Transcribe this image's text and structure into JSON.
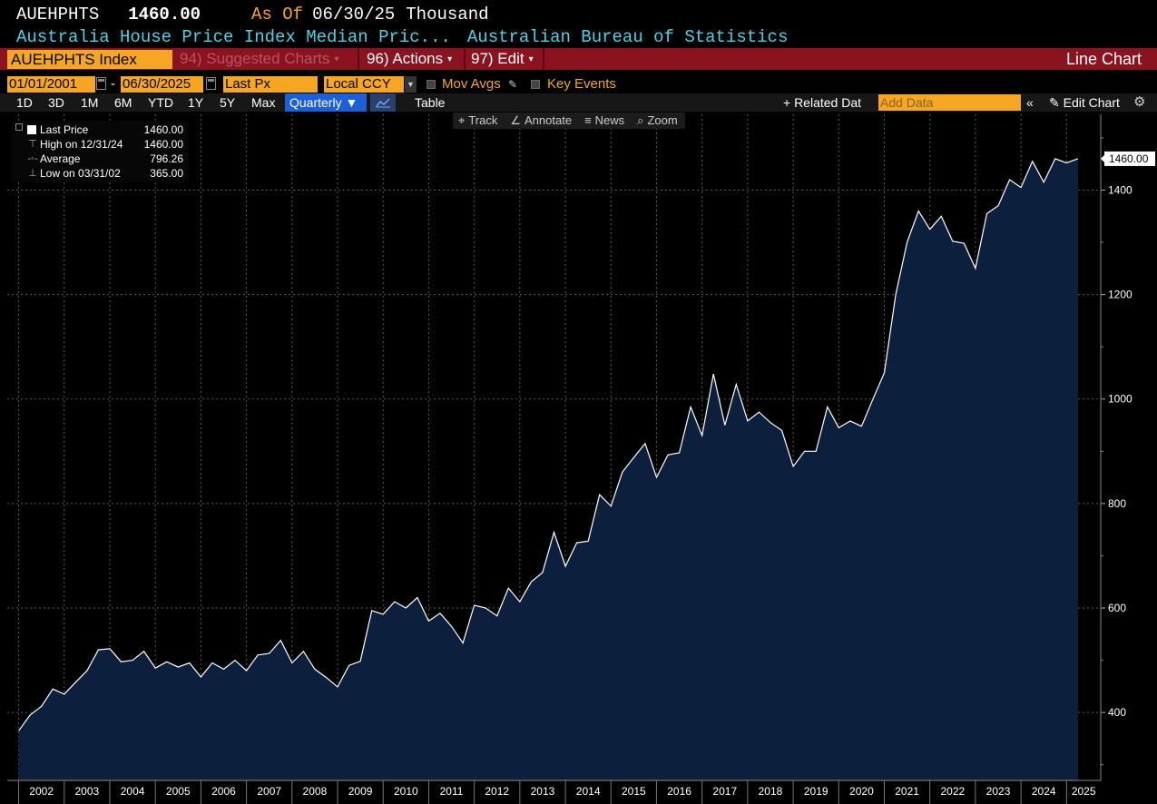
{
  "header": {
    "ticker": "AUEHPHTS",
    "price": "1460.00",
    "as_of_label": "As Of",
    "as_of_date": "06/30/25",
    "units": "Thousand",
    "description": "Australia House Price Index Median Pric...",
    "source": "Australian Bureau of Statistics"
  },
  "menu": {
    "index_name": "AUEHPHTS Index",
    "suggested": "94) Suggested Charts",
    "actions": "96) Actions",
    "edit": "97) Edit",
    "chart_type": "Line Chart"
  },
  "controls": {
    "start_date": "01/01/2001",
    "end_date": "06/30/2025",
    "field": "Last Px",
    "currency": "Local CCY",
    "mov_avgs": "Mov Avgs",
    "key_events": "Key Events",
    "periods": [
      "1D",
      "3D",
      "1M",
      "6M",
      "YTD",
      "1Y",
      "5Y",
      "Max"
    ],
    "frequency": "Quarterly",
    "table": "Table",
    "related": "+ Related Dat",
    "add_data_placeholder": "Add Data",
    "edit_chart": "Edit Chart"
  },
  "tools": [
    "Track",
    "Annotate",
    "News",
    "Zoom"
  ],
  "legend": {
    "rows": [
      {
        "label": "Last Price",
        "value": "1460.00"
      },
      {
        "label": "High on 12/31/24",
        "value": "1460.00"
      },
      {
        "label": "Average",
        "value": "796.26"
      },
      {
        "label": "Low on 03/31/02",
        "value": "365.00"
      }
    ]
  },
  "colors": {
    "accent": "#f5a623",
    "menu_bar": "#8b1320",
    "area_fill": "#0c1f3d",
    "line": "#ffffff",
    "title_cyan": "#4fd0e8"
  },
  "chart_data": {
    "type": "area",
    "title": "",
    "xlabel": "",
    "ylabel": "",
    "ylim": [
      270,
      1545
    ],
    "yticks": [
      400,
      600,
      800,
      1000,
      1200,
      1400
    ],
    "xlim": [
      2001.75,
      2025.75
    ],
    "year_labels": [
      "2002",
      "2003",
      "2004",
      "2005",
      "2006",
      "2007",
      "2008",
      "2009",
      "2010",
      "2011",
      "2012",
      "2013",
      "2014",
      "2015",
      "2016",
      "2017",
      "2018",
      "2019",
      "2020",
      "2021",
      "2022",
      "2023",
      "2024",
      "2025"
    ],
    "grid": true,
    "legend_position": "top-left",
    "last_value_tag": "1460.00",
    "series": [
      {
        "x": [
          2002.0,
          2002.25,
          2002.5,
          2002.75,
          2003.0,
          2003.25,
          2003.5,
          2003.75,
          2004.0,
          2004.25,
          2004.5,
          2004.75,
          2005.0,
          2005.25,
          2005.5,
          2005.75,
          2006.0,
          2006.25,
          2006.5,
          2006.75,
          2007.0,
          2007.25,
          2007.5,
          2007.75,
          2008.0,
          2008.25,
          2008.5,
          2008.75,
          2009.0,
          2009.25,
          2009.5,
          2009.75,
          2010.0,
          2010.25,
          2010.5,
          2010.75,
          2011.0,
          2011.25,
          2011.5,
          2011.75,
          2012.0,
          2012.25,
          2012.5,
          2012.75,
          2013.0,
          2013.25,
          2013.5,
          2013.75,
          2014.0,
          2014.25,
          2014.5,
          2014.75,
          2015.0,
          2015.25,
          2015.5,
          2015.75,
          2016.0,
          2016.25,
          2016.5,
          2016.75,
          2017.0,
          2017.25,
          2017.5,
          2017.75,
          2018.0,
          2018.25,
          2018.5,
          2018.75,
          2019.0,
          2019.25,
          2019.5,
          2019.75,
          2020.0,
          2020.25,
          2020.5,
          2020.75,
          2021.0,
          2021.25,
          2021.5,
          2021.75,
          2022.0,
          2022.25,
          2022.5,
          2022.75,
          2023.0,
          2023.25,
          2023.5,
          2023.75,
          2024.0,
          2024.25,
          2024.5,
          2024.75,
          2025.0,
          2025.25
        ],
        "y": [
          365,
          395,
          412,
          445,
          435,
          458,
          480,
          520,
          522,
          497,
          500,
          517,
          485,
          497,
          487,
          495,
          468,
          495,
          483,
          500,
          480,
          510,
          513,
          538,
          495,
          517,
          483,
          467,
          449,
          490,
          498,
          595,
          588,
          612,
          600,
          620,
          575,
          590,
          565,
          533,
          605,
          600,
          585,
          638,
          612,
          650,
          668,
          745,
          680,
          725,
          728,
          817,
          795,
          860,
          888,
          915,
          850,
          893,
          897,
          985,
          930,
          1048,
          950,
          1028,
          958,
          975,
          955,
          940,
          871,
          900,
          900,
          985,
          945,
          958,
          948,
          1000,
          1050,
          1200,
          1300,
          1360,
          1325,
          1350,
          1302,
          1298,
          1250,
          1355,
          1370,
          1420,
          1405,
          1455,
          1415,
          1460,
          1452,
          1460
        ]
      }
    ]
  }
}
